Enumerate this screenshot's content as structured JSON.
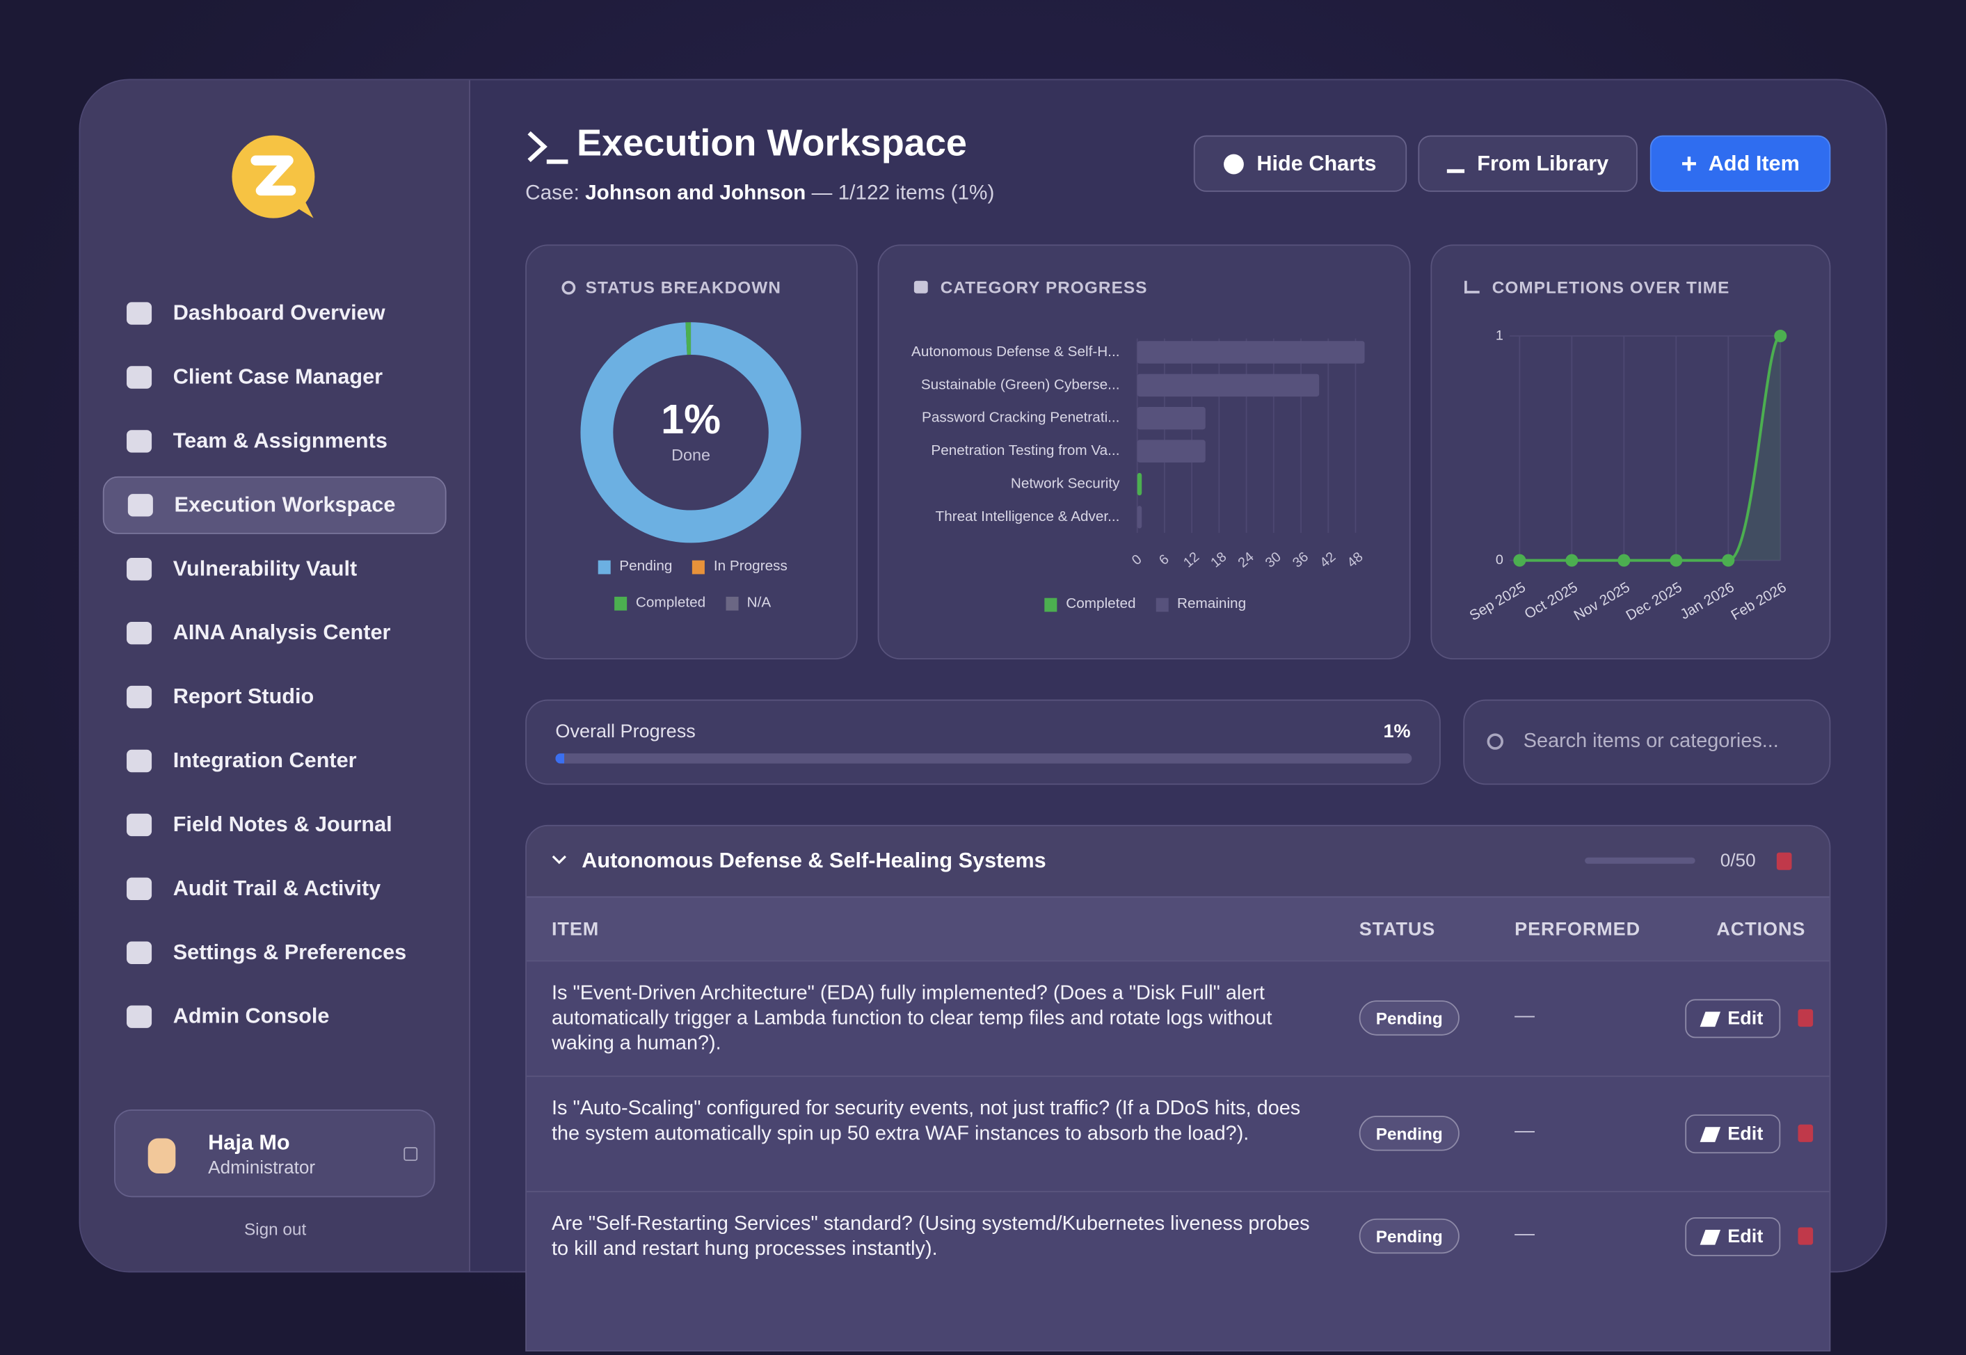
{
  "sidebar": {
    "nav": [
      "Dashboard Overview",
      "Client Case Manager",
      "Team & Assignments",
      "Execution Workspace",
      "Vulnerability Vault",
      "AINA Analysis Center",
      "Report Studio",
      "Integration Center",
      "Field Notes & Journal",
      "Audit Trail & Activity",
      "Settings & Preferences",
      "Admin Console"
    ],
    "active": 3,
    "user": {
      "name": "Haja Mo",
      "role": "Administrator"
    },
    "sign_out": "Sign out"
  },
  "header": {
    "title": "Execution Workspace",
    "case_label": "Case:",
    "case_name": "Johnson and Johnson",
    "summary": "— 1/122 items (1%)"
  },
  "buttons": [
    "Hide Charts",
    "From Library",
    "Add Item"
  ],
  "chart_data": [
    {
      "type": "donut",
      "title": "STATUS BREAKDOWN",
      "center_label": "1%",
      "center_sublabel": "Done",
      "categories": [
        "Pending",
        "In Progress",
        "Completed",
        "N/A"
      ],
      "values": [
        121,
        0,
        1,
        0
      ],
      "colors": [
        "#6cb0e2",
        "#e8923a",
        "#4caf50",
        "#6b6784"
      ]
    },
    {
      "type": "hbar",
      "title": "CATEGORY PROGRESS",
      "categories": [
        "Autonomous Defense & Self-H...",
        "Sustainable (Green) Cyberse...",
        "Password Cracking Penetrati...",
        "Penetration Testing from Va...",
        "Network Security",
        "Threat Intelligence & Adver..."
      ],
      "series": [
        {
          "name": "Completed",
          "color": "#4caf50",
          "values": [
            0,
            0,
            0,
            0,
            1,
            0
          ]
        },
        {
          "name": "Remaining",
          "color": "#57527c",
          "values": [
            50,
            40,
            15,
            15,
            0,
            1
          ]
        }
      ],
      "xlim": [
        0,
        51
      ],
      "xticks": [
        0,
        6,
        12,
        18,
        24,
        30,
        36,
        42,
        48
      ]
    },
    {
      "type": "line",
      "title": "COMPLETIONS OVER TIME",
      "categories": [
        "Sep 2025",
        "Oct 2025",
        "Nov 2025",
        "Dec 2025",
        "Jan 2026",
        "Feb 2026"
      ],
      "values": [
        0,
        0,
        0,
        0,
        0,
        1
      ],
      "color": "#4caf50",
      "ylim": [
        0,
        1
      ],
      "yticks": [
        0,
        1
      ]
    }
  ],
  "progress": {
    "label": "Overall Progress",
    "value": 1,
    "value_label": "1%"
  },
  "search_placeholder": "Search items or categories...",
  "group": {
    "title": "Autonomous Defense & Self-Healing Systems",
    "count_label": "0/50",
    "completed": 0,
    "total": 50
  },
  "table": {
    "headers": [
      "ITEM",
      "STATUS",
      "PERFORMED",
      "ACTIONS"
    ],
    "rows": [
      {
        "item": "Is \"Event-Driven Architecture\" (EDA) fully implemented? (Does a \"Disk Full\" alert automatically trigger a Lambda function to clear temp files and rotate logs without waking a human?).",
        "status": "Pending",
        "performed": "—",
        "action": "Edit"
      },
      {
        "item": "Is \"Auto-Scaling\" configured for security events, not just traffic? (If a DDoS hits, does the system automatically spin up 50 extra WAF instances to absorb the load?).",
        "status": "Pending",
        "performed": "—",
        "action": "Edit"
      },
      {
        "item": "Are \"Self-Restarting Services\" standard? (Using systemd/Kubernetes liveness probes to kill and restart hung processes instantly).",
        "status": "Pending",
        "performed": "—",
        "action": "Edit"
      }
    ]
  }
}
